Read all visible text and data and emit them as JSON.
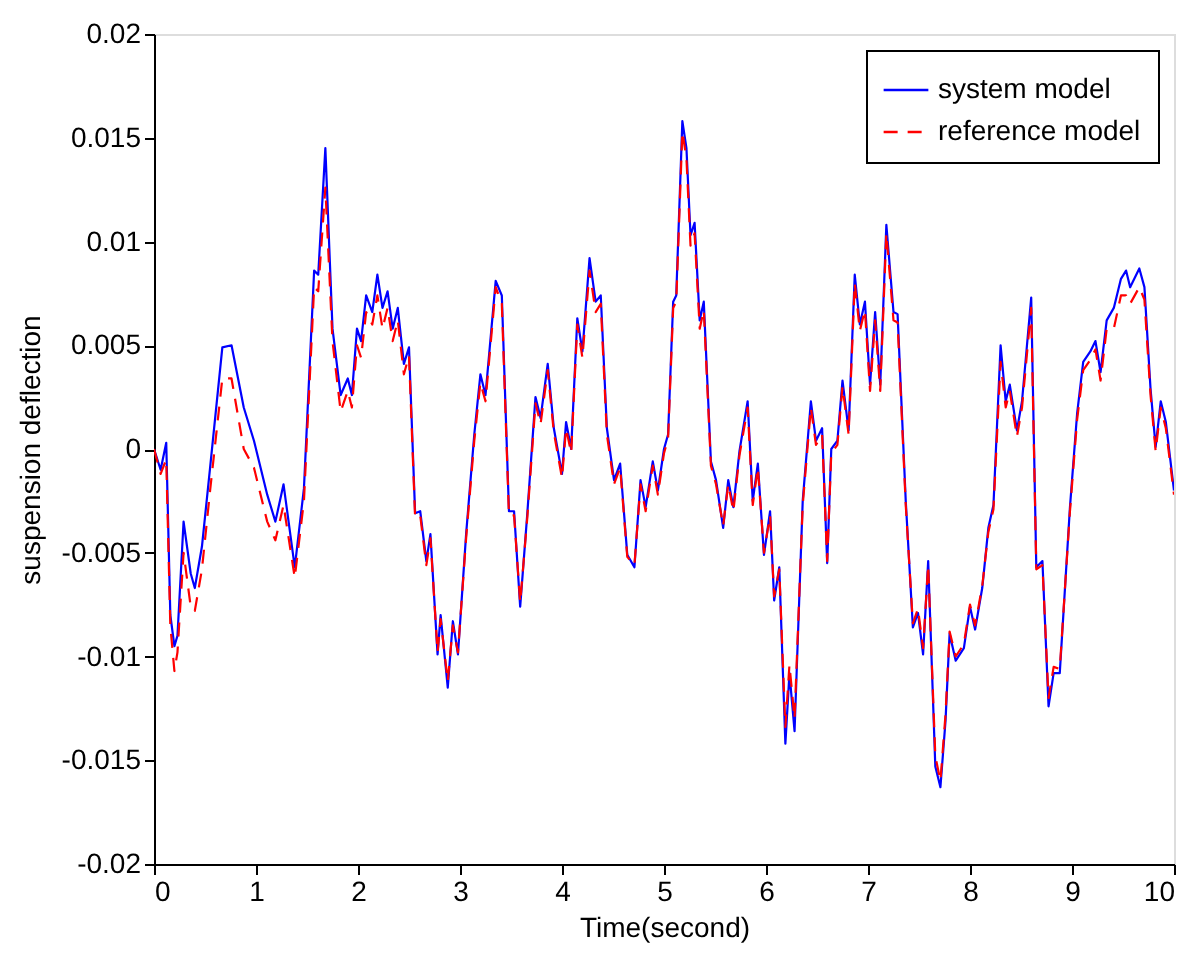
{
  "chart_data": {
    "type": "line",
    "xlabel": "Time(second)",
    "ylabel": "suspension deflection",
    "xlim": [
      0,
      10
    ],
    "xticks": [
      0,
      1,
      2,
      3,
      4,
      5,
      6,
      7,
      8,
      9,
      10
    ],
    "ylim": [
      -0.02,
      0.02
    ],
    "yticks": [
      -0.02,
      -0.015,
      -0.01,
      -0.005,
      0,
      0.005,
      0.01,
      0.015,
      0.02
    ],
    "grid": false,
    "legend": "top right",
    "marker": "none",
    "series": [
      {
        "name": "system model",
        "color": "#0000ff",
        "line_style": "solid",
        "x": [
          0,
          0.065,
          0.12,
          0.16,
          0.2,
          0.23,
          0.29,
          0.36,
          0.4,
          0.47,
          0.55,
          0.67,
          0.76,
          0.88,
          0.98,
          1.11,
          1.19,
          1.27,
          1.38,
          1.47,
          1.57,
          1.61,
          1.68,
          1.75,
          1.83,
          1.9,
          1.94,
          1.99,
          2.03,
          2.08,
          2.14,
          2.19,
          2.24,
          2.29,
          2.34,
          2.39,
          2.45,
          2.5,
          2.56,
          2.61,
          2.67,
          2.71,
          2.78,
          2.81,
          2.88,
          2.93,
          2.98,
          3.06,
          3.14,
          3.2,
          3.25,
          3.35,
          3.41,
          3.48,
          3.53,
          3.59,
          3.66,
          3.74,
          3.79,
          3.86,
          3.92,
          4.0,
          4.04,
          4.09,
          4.15,
          4.2,
          4.27,
          4.33,
          4.38,
          4.44,
          4.51,
          4.57,
          4.64,
          4.71,
          4.77,
          4.82,
          4.89,
          4.94,
          5.0,
          5.04,
          5.09,
          5.12,
          5.18,
          5.22,
          5.26,
          5.3,
          5.35,
          5.39,
          5.46,
          5.51,
          5.58,
          5.63,
          5.68,
          5.74,
          5.82,
          5.87,
          5.92,
          5.98,
          6.04,
          6.08,
          6.13,
          6.19,
          6.23,
          6.28,
          6.36,
          6.44,
          6.49,
          6.55,
          6.6,
          6.64,
          6.7,
          6.75,
          6.81,
          6.87,
          6.92,
          6.97,
          7.02,
          7.07,
          7.12,
          7.18,
          7.25,
          7.29,
          7.37,
          7.44,
          7.49,
          7.54,
          7.59,
          7.66,
          7.71,
          7.76,
          7.8,
          7.86,
          7.94,
          8.0,
          8.05,
          8.12,
          8.18,
          8.23,
          8.3,
          8.35,
          8.39,
          8.46,
          8.51,
          8.6,
          8.65,
          8.71,
          8.77,
          8.82,
          8.88,
          8.98,
          9.05,
          9.11,
          9.18,
          9.23,
          9.28,
          9.34,
          9.41,
          9.48,
          9.53,
          9.57,
          9.66,
          9.71,
          9.77,
          9.82,
          9.87,
          9.92,
          10.0
        ],
        "values": [
          0,
          -0.001,
          0.0003,
          -0.008,
          -0.0095,
          -0.009,
          -0.0035,
          -0.006,
          -0.0067,
          -0.0047,
          -0.0009,
          0.0049,
          0.005,
          0.002,
          0.0004,
          -0.0022,
          -0.0035,
          -0.0017,
          -0.0057,
          -0.0019,
          0.0086,
          0.0084,
          0.0145,
          0.0058,
          0.0026,
          0.0034,
          0.0026,
          0.0058,
          0.0052,
          0.0074,
          0.0066,
          0.0084,
          0.0068,
          0.0076,
          0.0058,
          0.0068,
          0.0041,
          0.0049,
          -0.0031,
          -0.003,
          -0.0054,
          -0.0041,
          -0.0099,
          -0.008,
          -0.0115,
          -0.0083,
          -0.0099,
          -0.0041,
          0.0007,
          0.0036,
          0.0026,
          0.0081,
          0.0074,
          -0.003,
          -0.003,
          -0.0076,
          -0.0031,
          0.0025,
          0.0015,
          0.0041,
          0.001,
          -0.0012,
          0.0013,
          0.0,
          0.0063,
          0.0047,
          0.0092,
          0.0071,
          0.0074,
          0.001,
          -0.0015,
          -0.0007,
          -0.0051,
          -0.0057,
          -0.0015,
          -0.0028,
          -0.0006,
          -0.002,
          0.0,
          0.0007,
          0.0071,
          0.0074,
          0.0158,
          0.0145,
          0.0103,
          0.0109,
          0.0062,
          0.0071,
          -0.0006,
          -0.0015,
          -0.0038,
          -0.0015,
          -0.0028,
          -0.0001,
          0.0023,
          -0.0025,
          -0.0007,
          -0.0051,
          -0.003,
          -0.0073,
          -0.0057,
          -0.0142,
          -0.0108,
          -0.0136,
          -0.0025,
          0.0023,
          0.0004,
          0.001,
          -0.0055,
          0.0,
          0.0004,
          0.0033,
          0.0009,
          0.0084,
          0.006,
          0.0071,
          0.0031,
          0.0066,
          0.0031,
          0.0108,
          0.0066,
          0.0065,
          -0.0025,
          -0.0086,
          -0.0079,
          -0.0099,
          -0.0054,
          -0.0153,
          -0.0163,
          -0.0131,
          -0.0089,
          -0.0102,
          -0.0096,
          -0.0076,
          -0.0087,
          -0.0067,
          -0.0038,
          -0.0027,
          0.005,
          0.0023,
          0.0031,
          0.0009,
          0.0023,
          0.0073,
          -0.0057,
          -0.0054,
          -0.0124,
          -0.0108,
          -0.0108,
          -0.0028,
          0.0017,
          0.0042,
          0.0047,
          0.0052,
          0.0037,
          0.0062,
          0.0068,
          0.0082,
          0.0086,
          0.0078,
          0.0087,
          0.0078,
          0.0029,
          0.0001,
          0.0023,
          0.0013,
          -0.002
        ]
      },
      {
        "name": "reference model",
        "color": "#ff0000",
        "line_style": "dashed",
        "x": [
          0,
          0.065,
          0.12,
          0.16,
          0.2,
          0.23,
          0.29,
          0.36,
          0.4,
          0.47,
          0.55,
          0.67,
          0.76,
          0.88,
          0.98,
          1.11,
          1.19,
          1.27,
          1.38,
          1.47,
          1.57,
          1.61,
          1.68,
          1.75,
          1.83,
          1.9,
          1.94,
          1.99,
          2.03,
          2.08,
          2.14,
          2.19,
          2.24,
          2.29,
          2.34,
          2.39,
          2.45,
          2.5,
          2.56,
          2.61,
          2.67,
          2.71,
          2.78,
          2.81,
          2.88,
          2.93,
          2.98,
          3.06,
          3.14,
          3.2,
          3.25,
          3.35,
          3.41,
          3.48,
          3.53,
          3.59,
          3.66,
          3.74,
          3.79,
          3.86,
          3.92,
          4.0,
          4.04,
          4.09,
          4.15,
          4.2,
          4.27,
          4.33,
          4.38,
          4.44,
          4.51,
          4.57,
          4.64,
          4.71,
          4.77,
          4.82,
          4.89,
          4.94,
          5.0,
          5.04,
          5.09,
          5.12,
          5.18,
          5.22,
          5.26,
          5.3,
          5.35,
          5.39,
          5.46,
          5.51,
          5.58,
          5.63,
          5.68,
          5.74,
          5.82,
          5.87,
          5.92,
          5.98,
          6.04,
          6.08,
          6.13,
          6.19,
          6.23,
          6.28,
          6.36,
          6.44,
          6.49,
          6.55,
          6.6,
          6.64,
          6.7,
          6.75,
          6.81,
          6.87,
          6.92,
          6.97,
          7.02,
          7.07,
          7.12,
          7.18,
          7.25,
          7.29,
          7.37,
          7.44,
          7.49,
          7.54,
          7.59,
          7.66,
          7.71,
          7.76,
          7.8,
          7.86,
          7.94,
          8.0,
          8.05,
          8.12,
          8.18,
          8.23,
          8.3,
          8.35,
          8.39,
          8.46,
          8.51,
          8.6,
          8.65,
          8.71,
          8.77,
          8.82,
          8.88,
          8.98,
          9.05,
          9.11,
          9.18,
          9.23,
          9.28,
          9.34,
          9.41,
          9.48,
          9.53,
          9.57,
          9.66,
          9.71,
          9.77,
          9.82,
          9.87,
          9.92,
          10.0
        ],
        "values": [
          0,
          -0.0012,
          -0.0005,
          -0.0085,
          -0.0107,
          -0.0098,
          -0.005,
          -0.0076,
          -0.0078,
          -0.0058,
          -0.002,
          0.0034,
          0.0034,
          0.0,
          -0.0009,
          -0.0035,
          -0.0044,
          -0.0027,
          -0.0062,
          -0.0025,
          0.0078,
          0.0076,
          0.0126,
          0.0052,
          0.0018,
          0.0028,
          0.002,
          0.005,
          0.0044,
          0.0066,
          0.006,
          0.0074,
          0.0058,
          0.0068,
          0.0052,
          0.0062,
          0.0036,
          0.0045,
          -0.0033,
          -0.0032,
          -0.0056,
          -0.0043,
          -0.0098,
          -0.0082,
          -0.0112,
          -0.0085,
          -0.0098,
          -0.0043,
          0.0004,
          0.0032,
          0.0023,
          0.0078,
          0.007,
          -0.0032,
          -0.0032,
          -0.0074,
          -0.0033,
          0.0022,
          0.0012,
          0.0038,
          0.0008,
          -0.0014,
          0.001,
          -0.0002,
          0.006,
          0.0044,
          0.0086,
          0.0066,
          0.007,
          0.0007,
          -0.0017,
          -0.0009,
          -0.0052,
          -0.0056,
          -0.0017,
          -0.003,
          -0.0008,
          -0.0022,
          -0.0002,
          0.0005,
          0.0068,
          0.0071,
          0.0153,
          0.014,
          0.0098,
          0.0104,
          0.0058,
          0.0067,
          -0.0008,
          -0.0017,
          -0.0037,
          -0.0017,
          -0.003,
          -0.0003,
          0.002,
          -0.0027,
          -0.0009,
          -0.005,
          -0.0032,
          -0.0071,
          -0.0058,
          -0.0134,
          -0.0104,
          -0.013,
          -0.0027,
          0.002,
          0.0002,
          0.0007,
          -0.0054,
          -0.0002,
          0.0002,
          0.003,
          0.0007,
          0.008,
          0.0057,
          0.0067,
          0.0028,
          0.0062,
          0.0028,
          0.0104,
          0.0062,
          0.0061,
          -0.0027,
          -0.0084,
          -0.0077,
          -0.0096,
          -0.0056,
          -0.0148,
          -0.016,
          -0.0128,
          -0.0088,
          -0.01,
          -0.0094,
          -0.0075,
          -0.0085,
          -0.0066,
          -0.004,
          -0.0029,
          0.0042,
          0.002,
          0.0028,
          0.0006,
          0.002,
          0.0068,
          -0.0058,
          -0.0056,
          -0.012,
          -0.0105,
          -0.0106,
          -0.003,
          0.0014,
          0.0038,
          0.0043,
          0.0048,
          0.0033,
          0.0058,
          0.0058,
          0.0074,
          0.0074,
          0.007,
          0.0078,
          0.0072,
          0.0026,
          -0.0001,
          0.002,
          0.001,
          -0.0022
        ]
      }
    ]
  }
}
